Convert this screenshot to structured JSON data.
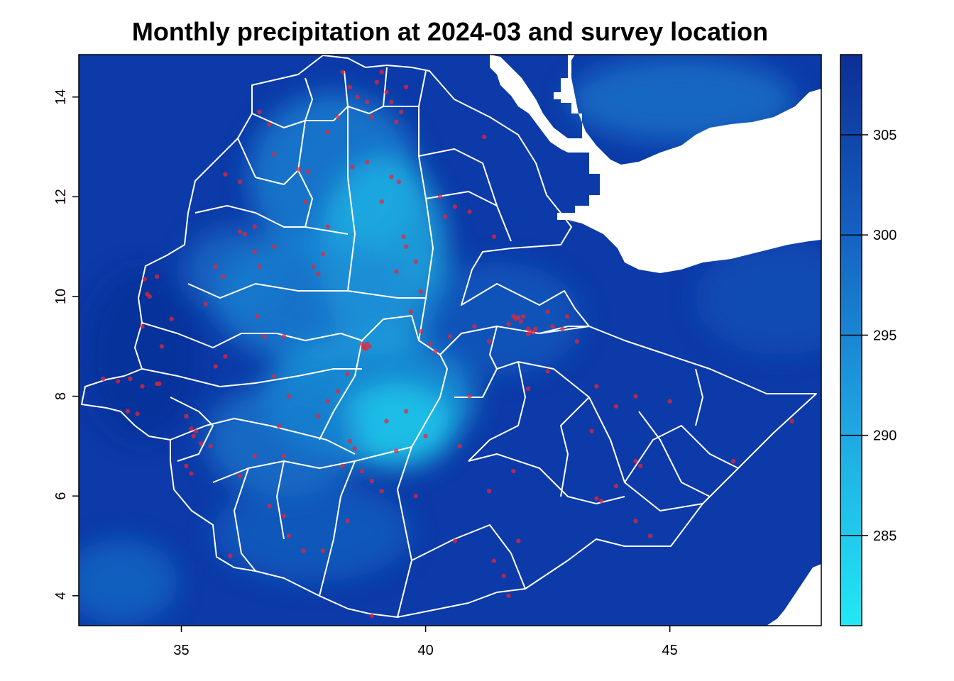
{
  "title": "Monthly precipitation at 2024-03 and survey location",
  "map": {
    "x_ticks": [
      35,
      40,
      45
    ],
    "y_ticks": [
      4,
      6,
      8,
      10,
      12,
      14
    ],
    "xlim": [
      32.9,
      48.1
    ],
    "ylim": [
      3.4,
      14.85
    ],
    "raster_color_low": "#22e8f5",
    "raster_color_mid": "#1e8fd8",
    "raster_color_high": "#0c2f96",
    "boundary_color": "#ffffff",
    "point_color": "#ee2233",
    "no_data_color": "#ffffff"
  },
  "legend": {
    "ticks": [
      285,
      290,
      295,
      300,
      305
    ],
    "range": [
      280.5,
      309
    ],
    "color_low": "#22e8f5",
    "color_high": "#0c2f96"
  },
  "survey_locations": [
    [
      33.4,
      8.35
    ],
    [
      33.7,
      8.3
    ],
    [
      33.95,
      8.35
    ],
    [
      34.2,
      8.2
    ],
    [
      34.5,
      8.25
    ],
    [
      34.55,
      8.25
    ],
    [
      33.9,
      7.7
    ],
    [
      34.1,
      7.65
    ],
    [
      34.3,
      10.05
    ],
    [
      34.35,
      10.0
    ],
    [
      34.25,
      10.35
    ],
    [
      34.2,
      9.4
    ],
    [
      34.6,
      9.0
    ],
    [
      34.5,
      10.4
    ],
    [
      34.8,
      9.55
    ],
    [
      35.2,
      7.35
    ],
    [
      35.25,
      7.2
    ],
    [
      35.3,
      7.3
    ],
    [
      35.1,
      7.6
    ],
    [
      35.4,
      7.05
    ],
    [
      35.1,
      6.6
    ],
    [
      35.2,
      6.45
    ],
    [
      35.6,
      7.0
    ],
    [
      35.7,
      10.6
    ],
    [
      35.85,
      10.4
    ],
    [
      35.5,
      9.85
    ],
    [
      35.9,
      12.45
    ],
    [
      36.2,
      12.3
    ],
    [
      35.9,
      8.8
    ],
    [
      35.7,
      8.6
    ],
    [
      36.2,
      11.3
    ],
    [
      36.3,
      11.25
    ],
    [
      36.5,
      11.4
    ],
    [
      36.5,
      10.9
    ],
    [
      36.6,
      10.6
    ],
    [
      36.9,
      11.0
    ],
    [
      36.55,
      9.6
    ],
    [
      36.7,
      9.2
    ],
    [
      37.1,
      9.2
    ],
    [
      36.9,
      8.4
    ],
    [
      37.2,
      8.0
    ],
    [
      37.0,
      7.4
    ],
    [
      37.1,
      6.8
    ],
    [
      36.5,
      6.8
    ],
    [
      36.2,
      6.4
    ],
    [
      36.6,
      13.7
    ],
    [
      36.8,
      13.45
    ],
    [
      36.9,
      12.85
    ],
    [
      37.4,
      12.55
    ],
    [
      37.6,
      12.5
    ],
    [
      37.55,
      11.9
    ],
    [
      37.7,
      10.6
    ],
    [
      37.8,
      10.45
    ],
    [
      38.0,
      11.4
    ],
    [
      37.9,
      10.85
    ],
    [
      38.0,
      13.3
    ],
    [
      38.2,
      13.6
    ],
    [
      38.3,
      14.5
    ],
    [
      38.45,
      14.2
    ],
    [
      38.6,
      14.0
    ],
    [
      38.8,
      13.9
    ],
    [
      38.9,
      13.6
    ],
    [
      39.0,
      14.3
    ],
    [
      39.2,
      14.1
    ],
    [
      39.3,
      13.9
    ],
    [
      39.4,
      13.5
    ],
    [
      39.5,
      13.7
    ],
    [
      39.6,
      14.2
    ],
    [
      39.1,
      14.5
    ],
    [
      38.5,
      12.6
    ],
    [
      38.8,
      12.7
    ],
    [
      39.3,
      12.4
    ],
    [
      39.45,
      12.3
    ],
    [
      39.1,
      11.9
    ],
    [
      39.55,
      11.2
    ],
    [
      39.6,
      11.0
    ],
    [
      39.4,
      10.5
    ],
    [
      39.8,
      10.7
    ],
    [
      39.9,
      10.1
    ],
    [
      39.7,
      9.7
    ],
    [
      38.7,
      9.05
    ],
    [
      38.75,
      9.0
    ],
    [
      38.8,
      9.05
    ],
    [
      38.78,
      8.95
    ],
    [
      38.85,
      9.0
    ],
    [
      38.72,
      8.98
    ],
    [
      38.4,
      8.45
    ],
    [
      38.2,
      8.1
    ],
    [
      38.0,
      7.9
    ],
    [
      37.8,
      7.6
    ],
    [
      38.45,
      7.1
    ],
    [
      38.55,
      6.95
    ],
    [
      38.3,
      6.6
    ],
    [
      38.7,
      6.5
    ],
    [
      38.9,
      6.3
    ],
    [
      39.1,
      6.1
    ],
    [
      38.4,
      5.5
    ],
    [
      37.9,
      4.9
    ],
    [
      37.5,
      4.9
    ],
    [
      37.2,
      5.2
    ],
    [
      39.9,
      9.3
    ],
    [
      40.1,
      9.05
    ],
    [
      40.2,
      8.9
    ],
    [
      40.5,
      9.2
    ],
    [
      41.0,
      9.4
    ],
    [
      41.3,
      9.1
    ],
    [
      41.8,
      9.6
    ],
    [
      41.85,
      9.55
    ],
    [
      41.9,
      9.58
    ],
    [
      42.0,
      9.6
    ],
    [
      41.95,
      9.5
    ],
    [
      41.7,
      9.45
    ],
    [
      42.1,
      9.35
    ],
    [
      42.15,
      9.3
    ],
    [
      42.2,
      9.28
    ],
    [
      42.1,
      9.25
    ],
    [
      42.25,
      9.35
    ],
    [
      42.6,
      9.4
    ],
    [
      42.8,
      9.35
    ],
    [
      42.9,
      9.6
    ],
    [
      43.1,
      9.1
    ],
    [
      42.5,
      9.7
    ],
    [
      40.6,
      11.8
    ],
    [
      40.9,
      11.7
    ],
    [
      41.4,
      11.2
    ],
    [
      41.2,
      13.2
    ],
    [
      40.3,
      12.0
    ],
    [
      40.4,
      11.6
    ],
    [
      42.5,
      8.5
    ],
    [
      42.1,
      8.15
    ],
    [
      43.5,
      8.2
    ],
    [
      43.9,
      7.8
    ],
    [
      44.3,
      8.0
    ],
    [
      45.0,
      7.9
    ],
    [
      43.4,
      7.3
    ],
    [
      44.3,
      6.7
    ],
    [
      44.4,
      6.6
    ],
    [
      43.9,
      6.2
    ],
    [
      43.5,
      5.95
    ],
    [
      43.6,
      5.9
    ],
    [
      44.3,
      5.5
    ],
    [
      44.6,
      5.2
    ],
    [
      46.3,
      6.7
    ],
    [
      47.5,
      7.5
    ],
    [
      41.8,
      6.5
    ],
    [
      41.3,
      6.1
    ],
    [
      41.9,
      5.1
    ],
    [
      41.6,
      4.4
    ],
    [
      41.4,
      4.7
    ],
    [
      40.7,
      7.0
    ],
    [
      40.9,
      8.0
    ],
    [
      40.0,
      7.2
    ],
    [
      39.6,
      7.7
    ],
    [
      39.2,
      7.5
    ],
    [
      39.4,
      6.9
    ],
    [
      39.8,
      6.0
    ],
    [
      36.0,
      4.8
    ],
    [
      36.8,
      5.8
    ],
    [
      37.1,
      5.6
    ],
    [
      38.9,
      3.6
    ],
    [
      40.6,
      5.1
    ],
    [
      41.7,
      4.0
    ]
  ]
}
